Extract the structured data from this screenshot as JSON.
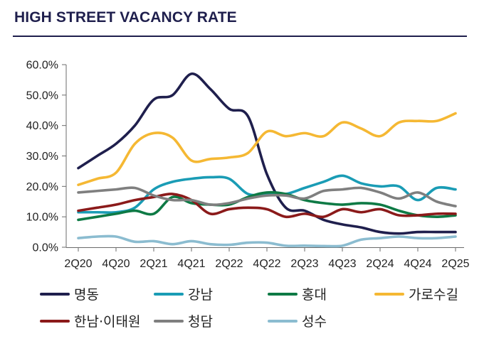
{
  "title": "HIGH STREET VACANCY RATE",
  "chart_data": {
    "type": "line",
    "title": "HIGH STREET VACANCY RATE",
    "xlabel": "",
    "ylabel": "",
    "ylim": [
      0,
      60
    ],
    "y_ticks": [
      "60.0%",
      "50.0%",
      "40.0%",
      "30.0%",
      "20.0%",
      "10.0%",
      "0.0%"
    ],
    "y_tick_values": [
      60,
      50,
      40,
      30,
      20,
      10,
      0
    ],
    "categories": [
      "2Q20",
      "3Q20",
      "4Q20",
      "1Q21",
      "2Q21",
      "3Q21",
      "4Q21",
      "1Q22",
      "2Q22",
      "3Q22",
      "4Q22",
      "1Q23",
      "2Q23",
      "3Q23",
      "4Q23",
      "1Q24",
      "2Q24",
      "3Q24",
      "4Q24",
      "1Q25",
      "2Q25"
    ],
    "x_tick_labels": [
      "2Q20",
      "4Q20",
      "2Q21",
      "4Q21",
      "2Q22",
      "4Q22",
      "2Q23",
      "4Q23",
      "2Q24",
      "4Q24",
      "2Q25"
    ],
    "x_tick_indices": [
      0,
      2,
      4,
      6,
      8,
      10,
      12,
      14,
      16,
      18,
      20
    ],
    "grid": false,
    "legend_position": "bottom",
    "series": [
      {
        "name": "명동",
        "color": "#1f1f4d",
        "values": [
          26.0,
          30.0,
          34.0,
          40.0,
          48.5,
          50.0,
          57.0,
          52.0,
          45.5,
          43.0,
          24.0,
          13.0,
          12.0,
          9.0,
          7.5,
          6.5,
          5.0,
          4.5,
          5.0,
          5.0,
          5.0
        ]
      },
      {
        "name": "강남",
        "color": "#1a9cb5",
        "values": [
          11.5,
          11.5,
          11.5,
          13.0,
          19.0,
          21.5,
          22.5,
          23.0,
          22.5,
          17.5,
          17.5,
          17.5,
          19.5,
          21.5,
          23.5,
          21.0,
          20.0,
          20.0,
          15.5,
          19.5,
          19.0
        ]
      },
      {
        "name": "홍대",
        "color": "#0e7a45",
        "values": [
          9.0,
          10.0,
          11.0,
          12.0,
          11.0,
          16.5,
          14.5,
          14.0,
          14.0,
          16.5,
          18.0,
          17.5,
          15.5,
          14.5,
          14.0,
          14.5,
          14.0,
          12.0,
          10.5,
          10.0,
          10.5
        ]
      },
      {
        "name": "가로수길",
        "color": "#f5b833",
        "values": [
          20.5,
          22.5,
          24.5,
          34.0,
          37.5,
          36.0,
          28.5,
          29.0,
          29.5,
          31.0,
          38.0,
          36.5,
          37.5,
          36.5,
          41.0,
          39.0,
          36.5,
          41.0,
          41.5,
          41.5,
          44.0
        ]
      },
      {
        "name": "한남·이태원",
        "color": "#8b1a1a",
        "values": [
          12.0,
          13.0,
          14.0,
          15.5,
          16.5,
          17.5,
          15.5,
          11.0,
          12.5,
          13.0,
          12.5,
          10.0,
          11.0,
          10.0,
          12.5,
          11.5,
          12.5,
          10.5,
          10.5,
          11.0,
          11.0
        ]
      },
      {
        "name": "청담",
        "color": "#7f7f7f",
        "values": [
          18.0,
          18.5,
          19.0,
          19.5,
          17.0,
          15.5,
          15.5,
          14.0,
          14.5,
          16.0,
          17.0,
          17.0,
          16.0,
          18.5,
          19.0,
          19.5,
          18.0,
          16.0,
          18.0,
          15.0,
          13.5
        ]
      },
      {
        "name": "성수",
        "color": "#8bbcd0",
        "values": [
          3.0,
          3.5,
          3.5,
          1.8,
          2.0,
          1.0,
          2.0,
          1.0,
          0.8,
          1.5,
          1.5,
          0.5,
          0.5,
          0.4,
          0.5,
          2.5,
          3.0,
          3.5,
          3.0,
          3.0,
          3.5
        ]
      }
    ]
  }
}
